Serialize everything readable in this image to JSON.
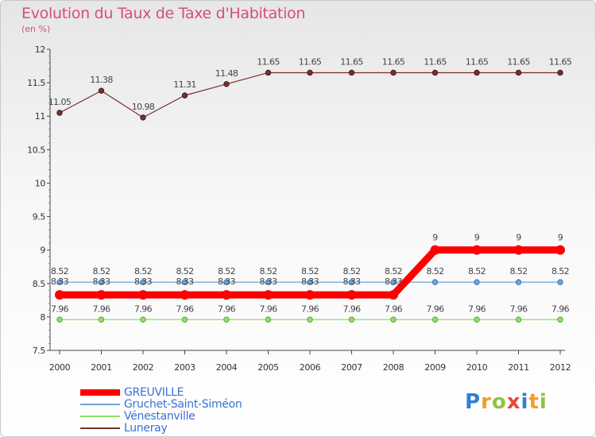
{
  "chart_data": {
    "type": "line",
    "title": "Evolution du Taux de Taxe d'Habitation",
    "subtitle": "(en %)",
    "xlabel": "",
    "ylabel": "",
    "x": [
      "2000",
      "2001",
      "2002",
      "2003",
      "2004",
      "2005",
      "2006",
      "2007",
      "2008",
      "2009",
      "2010",
      "2011",
      "2012"
    ],
    "ylim": [
      7.5,
      12
    ],
    "yticks": [
      "7.5",
      "8",
      "8.5",
      "9",
      "9.5",
      "10",
      "10.5",
      "11",
      "11.5",
      "12"
    ],
    "series": [
      {
        "name": "GREUVILLE",
        "color": "#ff0000",
        "values": [
          8.33,
          8.33,
          8.33,
          8.33,
          8.33,
          8.33,
          8.33,
          8.33,
          8.33,
          9,
          9,
          9,
          9
        ],
        "labels": [
          "8.33",
          "8.33",
          "8.33",
          "8.33",
          "8.33",
          "8.33",
          "8.33",
          "8.33",
          "8.33",
          "9",
          "9",
          "9",
          "9"
        ]
      },
      {
        "name": "Gruchet-Saint-Siméon",
        "color": "#6fa3d6",
        "values": [
          8.52,
          8.52,
          8.52,
          8.52,
          8.52,
          8.52,
          8.52,
          8.52,
          8.52,
          8.52,
          8.52,
          8.52,
          8.52
        ],
        "labels": [
          "8.52",
          "8.52",
          "8.52",
          "8.52",
          "8.52",
          "8.52",
          "8.52",
          "8.52",
          "8.52",
          "8.52",
          "8.52",
          "8.52",
          "8.52"
        ]
      },
      {
        "name": "Vénestanville",
        "color": "#8ee063",
        "values": [
          7.96,
          7.96,
          7.96,
          7.96,
          7.96,
          7.96,
          7.96,
          7.96,
          7.96,
          7.96,
          7.96,
          7.96,
          7.96
        ],
        "labels": [
          "7.96",
          "7.96",
          "7.96",
          "7.96",
          "7.96",
          "7.96",
          "7.96",
          "7.96",
          "7.96",
          "7.96",
          "7.96",
          "7.96",
          "7.96"
        ]
      },
      {
        "name": "Luneray",
        "color": "#7a2e2e",
        "values": [
          11.05,
          11.38,
          10.98,
          11.31,
          11.48,
          11.65,
          11.65,
          11.65,
          11.65,
          11.65,
          11.65,
          11.65,
          11.65
        ],
        "labels": [
          "11.05",
          "11.38",
          "10.98",
          "11.31",
          "11.48",
          "11.65",
          "11.65",
          "11.65",
          "11.65",
          "11.65",
          "11.65",
          "11.65",
          "11.65"
        ]
      }
    ]
  },
  "legend": {
    "items": [
      {
        "label": "GREUVILLE",
        "color": "#ff0000"
      },
      {
        "label": "Gruchet-Saint-Siméon",
        "color": "#6fa3d6"
      },
      {
        "label": "Vénestanville",
        "color": "#8ee063"
      },
      {
        "label": "Luneray",
        "color": "#7a2e2e"
      }
    ]
  },
  "logo": {
    "text": "Proxiti",
    "letters": [
      {
        "ch": "P",
        "color": "#2f7fd6"
      },
      {
        "ch": "r",
        "color": "#f0a020"
      },
      {
        "ch": "o",
        "color": "#8cc63f"
      },
      {
        "ch": "x",
        "color": "#e8463c"
      },
      {
        "ch": "i",
        "color": "#2f7fd6"
      },
      {
        "ch": "t",
        "color": "#f0a020"
      },
      {
        "ch": "i",
        "color": "#8cc63f"
      }
    ]
  }
}
